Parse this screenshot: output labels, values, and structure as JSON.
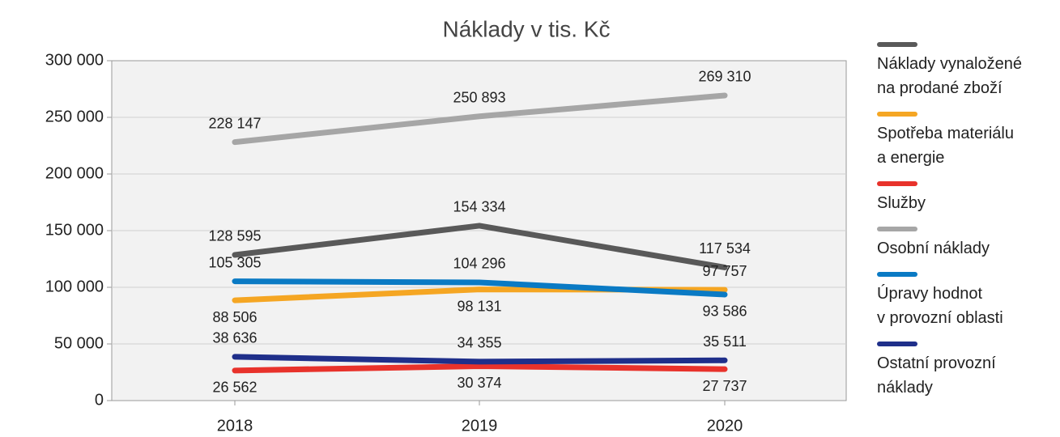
{
  "chart_data": {
    "type": "line",
    "title": "Náklady v tis. Kč",
    "categories": [
      "2018",
      "2019",
      "2020"
    ],
    "series": [
      {
        "name": "Náklady vynaložené\nna prodané zboží",
        "color": "#595959",
        "values": [
          128595,
          154334,
          117534
        ],
        "value_labels": [
          "128 595",
          "154 334",
          "117 534"
        ]
      },
      {
        "name": "Spotřeba materiálu\na energie",
        "color": "#f5a623",
        "values": [
          88506,
          98131,
          97757
        ],
        "value_labels": [
          "88 506",
          "98 131",
          "97 757"
        ]
      },
      {
        "name": "Služby",
        "color": "#e8322b",
        "values": [
          26562,
          30374,
          27737
        ],
        "value_labels": [
          "26 562",
          "30 374",
          "27 737"
        ]
      },
      {
        "name": "Osobní náklady",
        "color": "#a6a6a6",
        "values": [
          228147,
          250893,
          269310
        ],
        "value_labels": [
          "228 147",
          "250 893",
          "269 310"
        ]
      },
      {
        "name": "Úpravy hodnot\nv provozní oblasti",
        "color": "#0a7ac4",
        "values": [
          105305,
          104296,
          93586
        ],
        "value_labels": [
          "105 305",
          "104 296",
          "93 586"
        ]
      },
      {
        "name": "Ostatní provozní\nnáklady",
        "color": "#1f2f8a",
        "values": [
          38636,
          34355,
          35511
        ],
        "value_labels": [
          "38 636",
          "34 355",
          "35 511"
        ]
      }
    ],
    "ylim": [
      0,
      300000
    ],
    "yticks": [
      0,
      {
        "value": 50000,
        "label": "50 000"
      },
      {
        "value": 100000,
        "label": "100 000"
      },
      {
        "value": 150000,
        "label": "150 000"
      },
      {
        "value": 200000,
        "label": "200 000"
      },
      {
        "value": 250000,
        "label": "250 000"
      },
      {
        "value": 300000,
        "label": "300 000"
      }
    ],
    "grid": true
  }
}
